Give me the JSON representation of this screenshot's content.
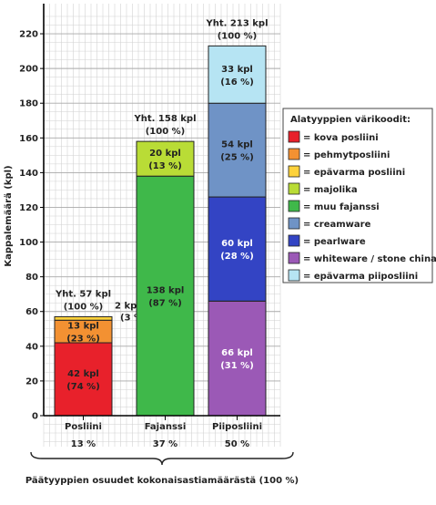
{
  "chart_data": {
    "type": "bar",
    "stacked": true,
    "ylabel": "Kappalemäärä (kpl)",
    "xlabel": "Päätyyppien osuudet kokonaisastiamäärästä (100 %)",
    "ylim": [
      0,
      230
    ],
    "yticks": [
      0,
      20,
      40,
      60,
      80,
      100,
      120,
      140,
      160,
      180,
      200,
      220
    ],
    "grid": true,
    "categories": [
      "Posliini",
      "Fajanssi",
      "Piiposliini"
    ],
    "category_shares": [
      "13 %",
      "37 %",
      "50 %"
    ],
    "totals": [
      {
        "line1": "Yht. 57 kpl",
        "line2": "(100 %)"
      },
      {
        "line1": "Yht. 158 kpl",
        "line2": "(100 %)"
      },
      {
        "line1": "Yht. 213 kpl",
        "line2": "(100 %)"
      }
    ],
    "bars": [
      {
        "segments": [
          {
            "series": "kova posliini",
            "value": 42,
            "line1": "42 kpl",
            "line2": "(74 %)"
          },
          {
            "series": "pehmytposliini",
            "value": 13,
            "line1": "13 kpl",
            "line2": "(23 %)"
          },
          {
            "series": "epävarma posliini",
            "value": 2,
            "line1": "2 kpl",
            "line2": "(3 %)",
            "outside": true
          }
        ]
      },
      {
        "segments": [
          {
            "series": "muu fajanssi",
            "value": 138,
            "line1": "138 kpl",
            "line2": "(87 %)"
          },
          {
            "series": "majolika",
            "value": 20,
            "line1": "20 kpl",
            "line2": "(13 %)"
          }
        ]
      },
      {
        "segments": [
          {
            "series": "whiteware / stone china",
            "value": 66,
            "line1": "66 kpl",
            "line2": "(31 %)"
          },
          {
            "series": "pearlware",
            "value": 60,
            "line1": "60 kpl",
            "line2": "(28 %)"
          },
          {
            "series": "creamware",
            "value": 54,
            "line1": "54 kpl",
            "line2": "(25 %)"
          },
          {
            "series": "epävarma piiposliini",
            "value": 33,
            "line1": "33 kpl",
            "line2": "(16 %)"
          }
        ]
      }
    ],
    "legend": {
      "title": "Alatyyppien värikoodit:",
      "placement": "right",
      "items": [
        {
          "series": "kova posliini",
          "label": "= kova posliini",
          "color": "#e8212b"
        },
        {
          "series": "pehmytposliini",
          "label": "= pehmytposliini",
          "color": "#f39132"
        },
        {
          "series": "epävarma posliini",
          "label": "= epävarma posliini",
          "color": "#fdd23b"
        },
        {
          "series": "majolika",
          "label": "= majolika",
          "color": "#b9dc36"
        },
        {
          "series": "muu fajanssi",
          "label": "= muu fajanssi",
          "color": "#3fb84a"
        },
        {
          "series": "creamware",
          "label": "= creamware",
          "color": "#6f93c6"
        },
        {
          "series": "pearlware",
          "label": "= pearlware",
          "color": "#3344c4"
        },
        {
          "series": "whiteware / stone china",
          "label": "= whiteware / stone china",
          "color": "#9b59b6"
        },
        {
          "series": "epävarma piiposliini",
          "label": "= epävarma piiposliini",
          "color": "#b6e4f3"
        }
      ]
    }
  }
}
